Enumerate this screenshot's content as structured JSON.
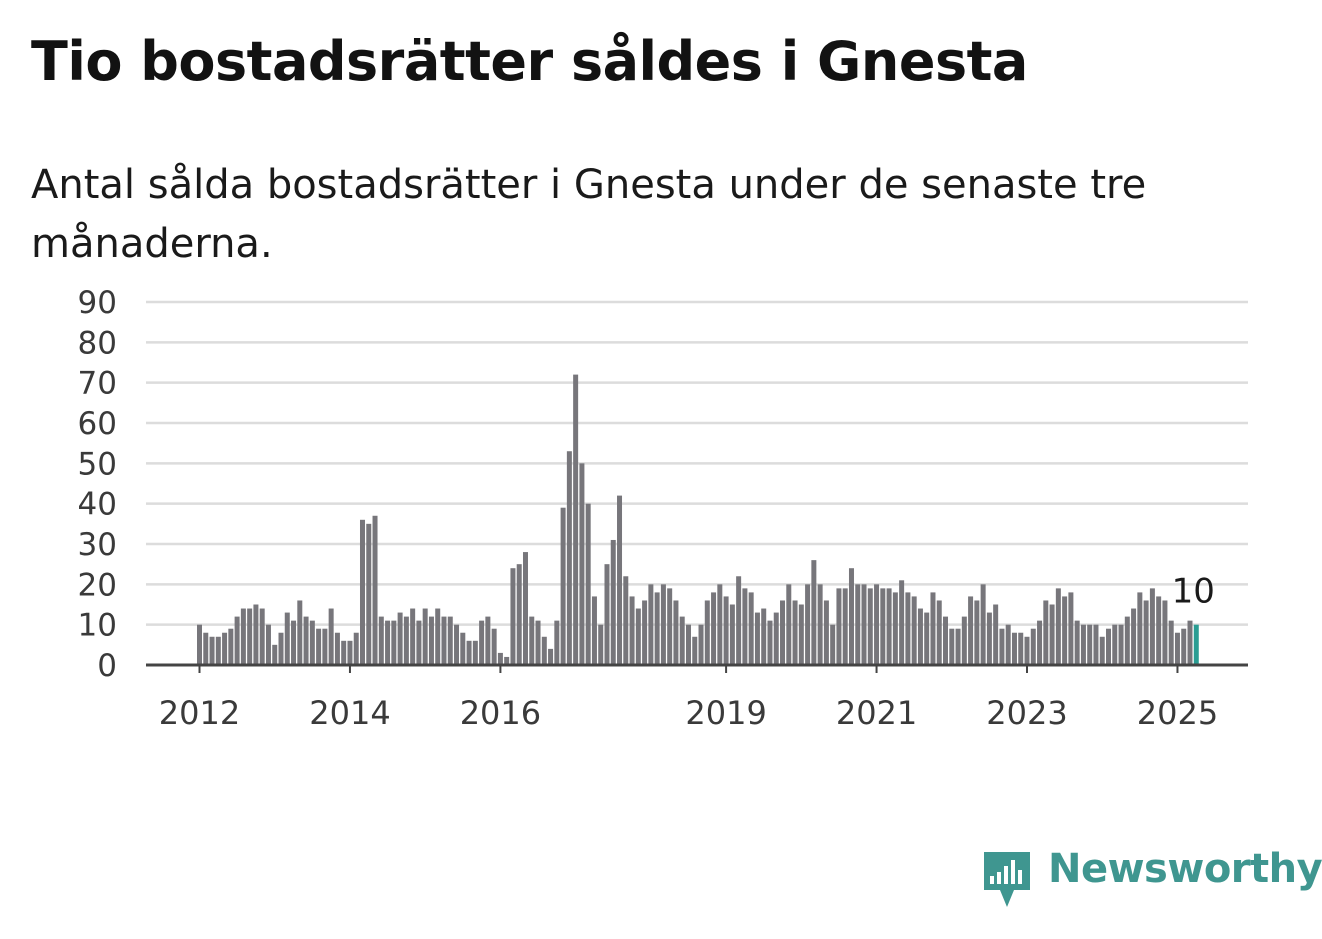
{
  "title": "Tio bostadsrätter såldes i Gnesta",
  "subtitle": "Antal sålda bostadsrätter i Gnesta under de senaste tre månaderna.",
  "brand": {
    "name": "Newsworthy",
    "color": "#3f9690",
    "icon": "newsworthy-logo-icon"
  },
  "colors": {
    "bar": "#77767b",
    "highlight": "#2a9d93",
    "grid": "#dcdcdc",
    "axis": "#444444"
  },
  "chart_data": {
    "type": "bar",
    "ylim": [
      0,
      90
    ],
    "yticks": [
      0,
      10,
      20,
      30,
      40,
      50,
      60,
      70,
      80,
      90
    ],
    "xlabels": [
      {
        "label": "2012",
        "at": "2012-01"
      },
      {
        "label": "2014",
        "at": "2014-01"
      },
      {
        "label": "2016",
        "at": "2016-01"
      },
      {
        "label": "2019",
        "at": "2019-01"
      },
      {
        "label": "2021",
        "at": "2021-01"
      },
      {
        "label": "2023",
        "at": "2023-01"
      },
      {
        "label": "2025",
        "at": "2025-01"
      }
    ],
    "grid": true,
    "categories": [
      "2012-01",
      "2012-02",
      "2012-03",
      "2012-04",
      "2012-05",
      "2012-06",
      "2012-07",
      "2012-08",
      "2012-09",
      "2012-10",
      "2012-11",
      "2012-12",
      "2013-01",
      "2013-02",
      "2013-03",
      "2013-04",
      "2013-05",
      "2013-06",
      "2013-07",
      "2013-08",
      "2013-09",
      "2013-10",
      "2013-11",
      "2013-12",
      "2014-01",
      "2014-02",
      "2014-03",
      "2014-04",
      "2014-05",
      "2014-06",
      "2014-07",
      "2014-08",
      "2014-09",
      "2014-10",
      "2014-11",
      "2014-12",
      "2015-01",
      "2015-02",
      "2015-03",
      "2015-04",
      "2015-05",
      "2015-06",
      "2015-07",
      "2015-08",
      "2015-09",
      "2015-10",
      "2015-11",
      "2015-12",
      "2016-01",
      "2016-02",
      "2016-03",
      "2016-04",
      "2016-05",
      "2016-06",
      "2016-07",
      "2016-08",
      "2016-09",
      "2016-10",
      "2016-11",
      "2016-12",
      "2017-01",
      "2017-02",
      "2017-03",
      "2017-04",
      "2017-05",
      "2017-06",
      "2017-07",
      "2017-08",
      "2017-09",
      "2017-10",
      "2017-11",
      "2017-12",
      "2018-01",
      "2018-02",
      "2018-03",
      "2018-04",
      "2018-05",
      "2018-06",
      "2018-07",
      "2018-08",
      "2018-09",
      "2018-10",
      "2018-11",
      "2018-12",
      "2019-01",
      "2019-02",
      "2019-03",
      "2019-04",
      "2019-05",
      "2019-06",
      "2019-07",
      "2019-08",
      "2019-09",
      "2019-10",
      "2019-11",
      "2019-12",
      "2020-01",
      "2020-02",
      "2020-03",
      "2020-04",
      "2020-05",
      "2020-06",
      "2020-07",
      "2020-08",
      "2020-09",
      "2020-10",
      "2020-11",
      "2020-12",
      "2021-01",
      "2021-02",
      "2021-03",
      "2021-04",
      "2021-05",
      "2021-06",
      "2021-07",
      "2021-08",
      "2021-09",
      "2021-10",
      "2021-11",
      "2021-12",
      "2022-01",
      "2022-02",
      "2022-03",
      "2022-04",
      "2022-05",
      "2022-06",
      "2022-07",
      "2022-08",
      "2022-09",
      "2022-10",
      "2022-11",
      "2022-12",
      "2023-01",
      "2023-02",
      "2023-03",
      "2023-04",
      "2023-05",
      "2023-06",
      "2023-07",
      "2023-08",
      "2023-09",
      "2023-10",
      "2023-11",
      "2023-12",
      "2024-01",
      "2024-02",
      "2024-03",
      "2024-04",
      "2024-05",
      "2024-06",
      "2024-07",
      "2024-08",
      "2024-09",
      "2024-10",
      "2024-11",
      "2024-12",
      "2025-01",
      "2025-02",
      "2025-03",
      "2025-04"
    ],
    "values": [
      10,
      8,
      7,
      7,
      8,
      9,
      12,
      14,
      14,
      15,
      14,
      10,
      5,
      8,
      13,
      11,
      16,
      12,
      11,
      9,
      9,
      14,
      8,
      6,
      6,
      8,
      36,
      35,
      37,
      12,
      11,
      11,
      13,
      12,
      14,
      11,
      14,
      12,
      14,
      12,
      12,
      10,
      8,
      6,
      6,
      11,
      12,
      9,
      3,
      2,
      24,
      25,
      28,
      12,
      11,
      7,
      4,
      11,
      39,
      53,
      72,
      50,
      40,
      17,
      10,
      25,
      31,
      42,
      22,
      17,
      14,
      16,
      20,
      18,
      20,
      19,
      16,
      12,
      10,
      7,
      10,
      16,
      18,
      20,
      17,
      15,
      22,
      19,
      18,
      13,
      14,
      11,
      13,
      16,
      20,
      16,
      15,
      20,
      26,
      20,
      16,
      10,
      19,
      19,
      24,
      20,
      20,
      19,
      20,
      19,
      19,
      18,
      21,
      18,
      17,
      14,
      13,
      18,
      16,
      12,
      9,
      9,
      12,
      17,
      16,
      20,
      13,
      15,
      9,
      10,
      8,
      8,
      7,
      9,
      11,
      16,
      15,
      19,
      17,
      18,
      11,
      10,
      10,
      10,
      7,
      9,
      10,
      10,
      12,
      14,
      18,
      16,
      19,
      17,
      16,
      11,
      8,
      9,
      11,
      10
    ],
    "highlight_index": 159,
    "annotation": "10"
  }
}
